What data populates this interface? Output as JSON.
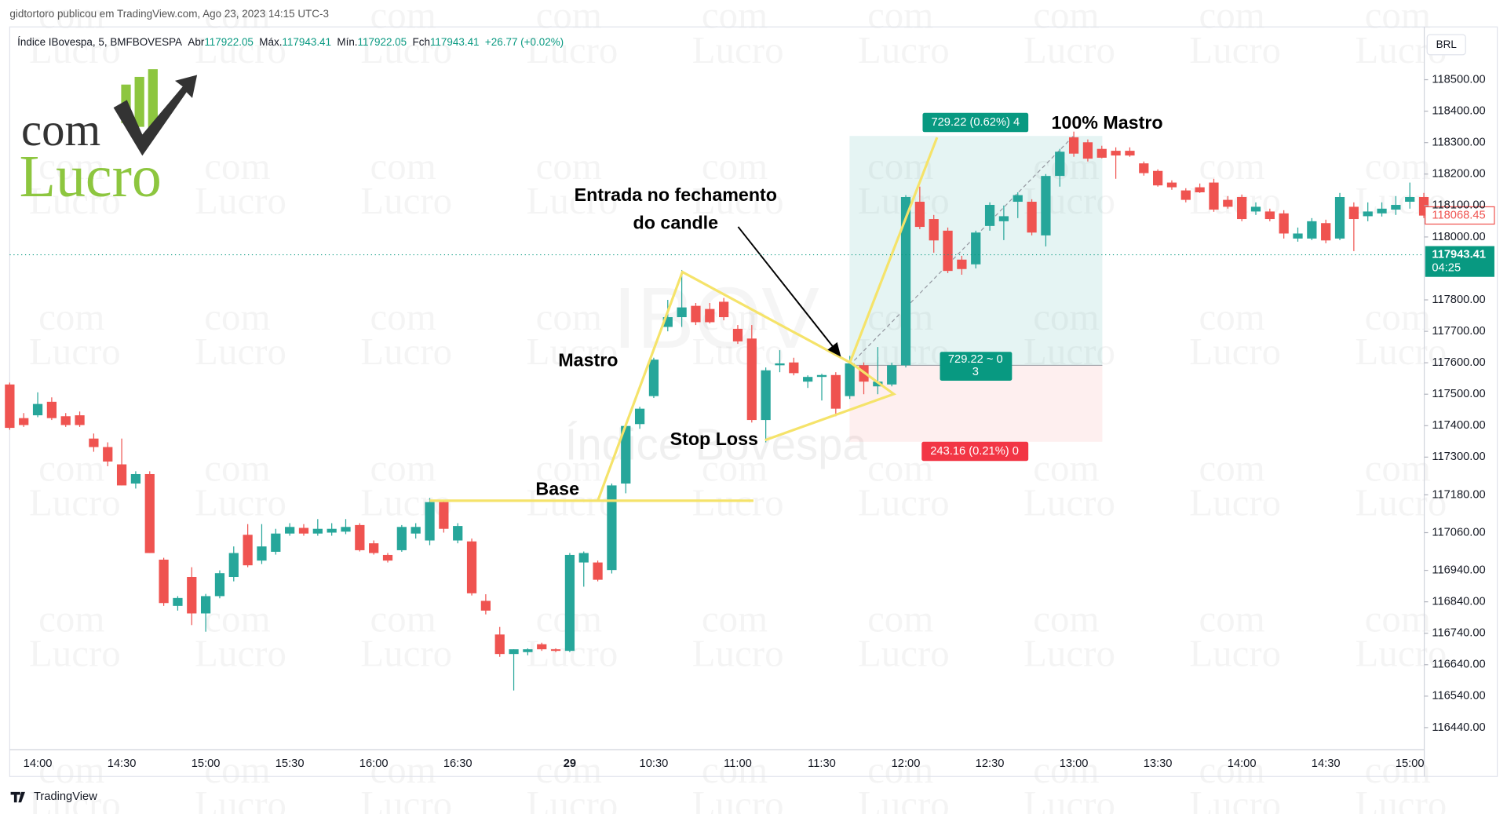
{
  "header": {
    "publisher": "gidtortoro publicou em TradingView.com, Ago 23, 2023 14:15 UTC-3"
  },
  "logo": {
    "top": "com",
    "bottom": "Lucro"
  },
  "watermark": {
    "top": "com",
    "bottom": "Lucro",
    "symbol": "IBOV",
    "name": "Índice Bovespa"
  },
  "footer": "TradingView",
  "chart_data": {
    "type": "candlestick",
    "symbol": "Índice IBovespa, 5, BMFBOVESPA",
    "ohlc_legend": [
      {
        "label": "Abr",
        "value": 117922.05
      },
      {
        "label": "Máx.",
        "value": 117943.41
      },
      {
        "label": "Mín.",
        "value": 117922.05
      },
      {
        "label": "Fch",
        "value": 117943.41
      }
    ],
    "change": "+26.77 (+0.02%)",
    "currency": "BRL",
    "up_color": "#26a69a",
    "down_color": "#ef5350",
    "categories": [
      null,
      null,
      "14:00",
      null,
      null,
      null,
      null,
      null,
      "14:30",
      null,
      null,
      null,
      null,
      null,
      "15:00",
      null,
      null,
      null,
      null,
      null,
      "15:30",
      null,
      null,
      null,
      null,
      null,
      "16:00",
      null,
      null,
      null,
      null,
      null,
      "16:30",
      null,
      null,
      null,
      null,
      null,
      null,
      null,
      "29",
      null,
      null,
      null,
      null,
      null,
      "10:30",
      null,
      null,
      null,
      null,
      null,
      "11:00",
      null,
      null,
      null,
      null,
      null,
      "11:30",
      null,
      null,
      null,
      null,
      null,
      "12:00",
      null,
      null,
      null,
      null,
      null,
      "12:30",
      null,
      null,
      null,
      null,
      null,
      "13:00",
      null,
      null,
      null,
      null,
      null,
      "13:30",
      null,
      null,
      null,
      null,
      null,
      "14:00",
      null,
      null,
      null,
      null,
      null,
      "14:30",
      null,
      null,
      null,
      null,
      null,
      "15:00",
      null
    ],
    "open": [
      117531,
      117424,
      117433,
      117476,
      117430,
      117433,
      117359,
      117332,
      117277,
      117216,
      117246,
      116974,
      116827,
      116919,
      116803,
      116858,
      116919,
      117053,
      116971,
      116999,
      117057,
      117075,
      117057,
      117060,
      117063,
      117084,
      117026,
      116989,
      117004,
      117057,
      117035,
      117157,
      117035,
      117032,
      116843,
      116736,
      116674,
      116680,
      116705,
      116689,
      116684,
      116965,
      116965,
      116941,
      117216,
      117405,
      117494,
      117714,
      117745,
      117781,
      117771,
      117794,
      117708,
      117677,
      117418,
      117592,
      117601,
      117540,
      117555,
      117561,
      117494,
      117592,
      117525,
      117531,
      117592,
      118112,
      118057,
      118020,
      117928,
      117913,
      118035,
      118050,
      118112,
      118112,
      118005,
      118194,
      118317,
      118301,
      118280,
      118274,
      118274,
      118234,
      118210,
      118173,
      118148,
      118158,
      118173,
      118118,
      118127,
      118081,
      118081,
      118075,
      117995,
      117995,
      118044,
      117995,
      118096,
      118066,
      118075,
      118087,
      118112,
      118127
    ],
    "high": [
      117537,
      117440,
      117506,
      117490,
      117440,
      117445,
      117375,
      117347,
      117359,
      117255,
      117255,
      116980,
      116858,
      116950,
      116865,
      116940,
      117016,
      117087,
      117087,
      117072,
      117090,
      117087,
      117103,
      117090,
      117103,
      117090,
      117035,
      116995,
      117084,
      117090,
      117170,
      117164,
      117090,
      117041,
      116864,
      116760,
      116689,
      116692,
      116710,
      116692,
      116995,
      117000,
      116971,
      117216,
      117405,
      117460,
      117616,
      117800,
      117895,
      117790,
      117790,
      117806,
      117720,
      117720,
      117585,
      117640,
      117616,
      117560,
      117565,
      117570,
      117622,
      117601,
      117650,
      117600,
      118133,
      118160,
      118070,
      118030,
      117940,
      118020,
      118110,
      118100,
      118142,
      118120,
      118200,
      118280,
      118335,
      118310,
      118290,
      118285,
      118285,
      118240,
      118215,
      118180,
      118155,
      118170,
      118185,
      118130,
      118135,
      118110,
      118090,
      118085,
      118030,
      118060,
      118055,
      118140,
      118110,
      118110,
      118110,
      118130,
      118173,
      118140
    ],
    "low": [
      117387,
      117396,
      117427,
      117418,
      117396,
      117396,
      117317,
      117271,
      117210,
      117200,
      116995,
      116827,
      116812,
      116766,
      116745,
      116851,
      116905,
      116950,
      116960,
      116990,
      117050,
      117050,
      117050,
      117050,
      117055,
      117000,
      116990,
      116965,
      116999,
      117041,
      117020,
      117060,
      117026,
      116860,
      116800,
      116665,
      116558,
      116670,
      116684,
      116680,
      116680,
      116888,
      116905,
      116930,
      117185,
      117390,
      117488,
      117700,
      117714,
      117720,
      117725,
      117735,
      117660,
      117410,
      117347,
      117570,
      117560,
      117520,
      117480,
      117430,
      117485,
      117500,
      117500,
      117525,
      117585,
      118025,
      117950,
      117885,
      117880,
      117900,
      118020,
      117990,
      118060,
      118005,
      117970,
      118160,
      118255,
      118240,
      118250,
      118185,
      118255,
      118195,
      118160,
      118150,
      118110,
      118140,
      118080,
      118090,
      118050,
      118070,
      118050,
      117995,
      117985,
      117990,
      117980,
      117990,
      117955,
      118050,
      118065,
      118070,
      118090,
      118060
    ],
    "close": [
      117393,
      117402,
      117469,
      117424,
      117402,
      117402,
      117332,
      117286,
      117210,
      117246,
      116995,
      116836,
      116852,
      116803,
      116858,
      116931,
      116995,
      116956,
      117016,
      117057,
      117078,
      117057,
      117072,
      117072,
      117078,
      117004,
      116995,
      116971,
      117078,
      117078,
      117157,
      117072,
      117081,
      116867,
      116812,
      116674,
      116689,
      116689,
      116689,
      116684,
      116989,
      116995,
      116910,
      117210,
      117399,
      117454,
      117610,
      117745,
      117776,
      117729,
      117729,
      117745,
      117668,
      117418,
      117576,
      117598,
      117567,
      117555,
      117561,
      117454,
      117598,
      117540,
      117540,
      117592,
      118127,
      118032,
      117989,
      117892,
      117898,
      118014,
      118102,
      118066,
      118133,
      118014,
      118194,
      118271,
      118265,
      118249,
      118252,
      118259,
      118259,
      118203,
      118164,
      118158,
      118118,
      118142,
      118087,
      118096,
      118057,
      118096,
      118057,
      118011,
      118011,
      118050,
      117989,
      118127,
      118057,
      118081,
      118090,
      118102,
      118127,
      118068
    ],
    "ylim": [
      116370,
      118564
    ],
    "yticks": [
      {
        "value": 118500,
        "label": "118500.00"
      },
      {
        "value": 118400,
        "label": "118400.00"
      },
      {
        "value": 118300,
        "label": "118300.00"
      },
      {
        "value": 118200,
        "label": "118200.00"
      },
      {
        "value": 118100,
        "label": "118100.00"
      },
      {
        "value": 118000,
        "label": "118000.00"
      },
      {
        "value": 117800,
        "label": "117800.00"
      },
      {
        "value": 117700,
        "label": "117700.00"
      },
      {
        "value": 117600,
        "label": "117600.00"
      },
      {
        "value": 117500,
        "label": "117500.00"
      },
      {
        "value": 117400,
        "label": "117400.00"
      },
      {
        "value": 117300,
        "label": "117300.00"
      },
      {
        "value": 117180,
        "label": "117180.00"
      },
      {
        "value": 117060,
        "label": "117060.00"
      },
      {
        "value": 116940,
        "label": "116940.00"
      },
      {
        "value": 116840,
        "label": "116840.00"
      },
      {
        "value": 116740,
        "label": "116740.00"
      },
      {
        "value": 116640,
        "label": "116640.00"
      },
      {
        "value": 116540,
        "label": "116540.00"
      },
      {
        "value": 116440,
        "label": "116440.00"
      }
    ],
    "grid": false,
    "price_lines": [
      {
        "value": 118068.45,
        "color": "#ef5350"
      },
      {
        "value": 117943.41,
        "color": "#089981",
        "countdown": "04:25"
      }
    ],
    "position": {
      "entry": 117592,
      "target": 118321.22,
      "stop": 117348.84,
      "target_label": "729.22 (0.62%) 4",
      "entry_label": "729.22 ~ 0",
      "entry_sub": "3",
      "stop_label": "243.16 (0.21%) 0"
    },
    "annotations": [
      "Base",
      "Mastro",
      "Stop Loss",
      "Entrada no fechamento",
      "do candle",
      "100% Mastro"
    ]
  }
}
